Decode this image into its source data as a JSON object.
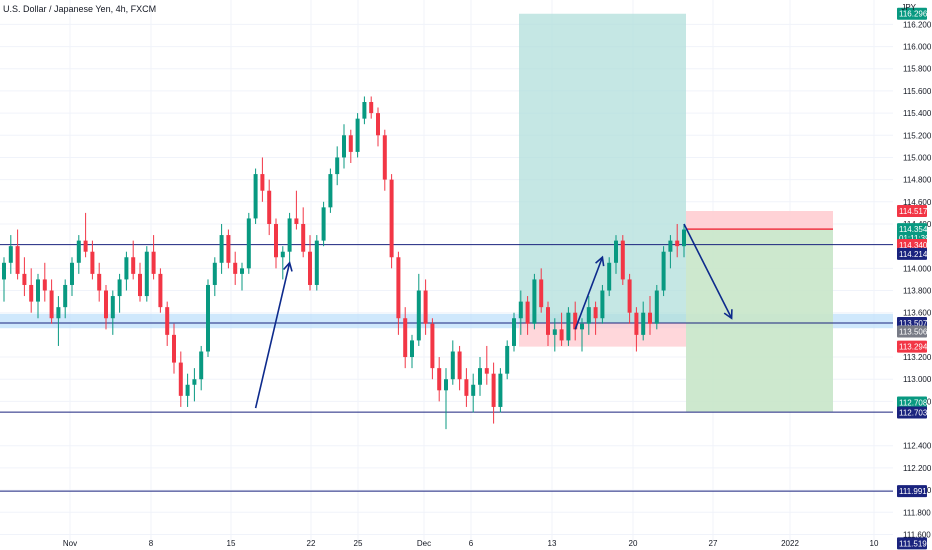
{
  "header": {
    "symbol_title": "U.S. Dollar / Japanese Yen, 4h, FXCM",
    "currency_unit": "JPY"
  },
  "chart_data": {
    "type": "candlestick",
    "title": "U.S. Dollar / Japanese Yen, 4h, FXCM",
    "ylim": [
      111.55,
      116.42
    ],
    "grid": true,
    "x_tick_labels": [
      "Nov",
      "8",
      "15",
      "22",
      "25",
      "Dec",
      "6",
      "13",
      "20",
      "27",
      "2022",
      "10"
    ],
    "y_tick_labels": [
      "116.200",
      "116.000",
      "115.800",
      "115.600",
      "115.400",
      "115.200",
      "115.000",
      "114.800",
      "114.600",
      "114.400",
      "114.000",
      "113.800",
      "113.600",
      "113.200",
      "113.000",
      "112.800",
      "112.400",
      "112.200",
      "112.000",
      "111.800",
      "111.600"
    ],
    "price_tags": [
      {
        "label": "116.296",
        "value": 116.296,
        "color": "#089981"
      },
      {
        "label": "114.517",
        "value": 114.517,
        "color": "#f23645"
      },
      {
        "label": "114.354",
        "value": 114.354,
        "color": "#089981"
      },
      {
        "label": "01:11:39",
        "value": 114.274,
        "color": "#089981"
      },
      {
        "label": "114.340",
        "value": 114.21,
        "color": "#f23645"
      },
      {
        "label": "114.214",
        "value": 114.13,
        "color": "#1a237e"
      },
      {
        "label": "113.507",
        "value": 113.507,
        "color": "#1a237e"
      },
      {
        "label": "113.506",
        "value": 113.43,
        "color": "#787b86"
      },
      {
        "label": "113.294",
        "value": 113.294,
        "color": "#f23645"
      },
      {
        "label": "112.708",
        "value": 112.79,
        "color": "#089981"
      },
      {
        "label": "112.703",
        "value": 112.7,
        "color": "#1a237e"
      },
      {
        "label": "111.991",
        "value": 111.991,
        "color": "#1a237e"
      },
      {
        "label": "111.519",
        "value": 111.519,
        "color": "#1a237e"
      }
    ],
    "horizontal_lines": [
      114.214,
      113.507,
      112.703,
      111.991
    ],
    "support_zone": [
      113.46,
      113.59
    ],
    "long_position": {
      "entry": 113.507,
      "target": 116.296,
      "stop": 113.294
    },
    "short_position": {
      "entry": 114.354,
      "target": 112.708,
      "stop": 114.517
    },
    "candles": [
      [
        113.9,
        114.1,
        113.7,
        114.05
      ],
      [
        114.05,
        114.3,
        113.95,
        114.2
      ],
      [
        114.2,
        114.35,
        113.9,
        113.95
      ],
      [
        113.95,
        114.1,
        113.75,
        113.85
      ],
      [
        113.85,
        114.0,
        113.6,
        113.7
      ],
      [
        113.7,
        113.95,
        113.55,
        113.9
      ],
      [
        113.9,
        114.05,
        113.7,
        113.8
      ],
      [
        113.8,
        113.9,
        113.5,
        113.55
      ],
      [
        113.55,
        113.75,
        113.3,
        113.65
      ],
      [
        113.65,
        113.9,
        113.55,
        113.85
      ],
      [
        113.85,
        114.1,
        113.75,
        114.05
      ],
      [
        114.05,
        114.3,
        113.95,
        114.25
      ],
      [
        114.25,
        114.5,
        114.1,
        114.15
      ],
      [
        114.15,
        114.25,
        113.9,
        113.95
      ],
      [
        113.95,
        114.05,
        113.7,
        113.8
      ],
      [
        113.8,
        113.85,
        113.45,
        113.55
      ],
      [
        113.55,
        113.8,
        113.4,
        113.75
      ],
      [
        113.75,
        113.95,
        113.6,
        113.9
      ],
      [
        113.9,
        114.15,
        113.8,
        114.1
      ],
      [
        114.1,
        114.25,
        113.9,
        113.95
      ],
      [
        113.95,
        114.05,
        113.7,
        113.75
      ],
      [
        113.75,
        114.2,
        113.7,
        114.15
      ],
      [
        114.15,
        114.3,
        113.9,
        113.95
      ],
      [
        113.95,
        114.0,
        113.6,
        113.65
      ],
      [
        113.65,
        113.7,
        113.3,
        113.4
      ],
      [
        113.4,
        113.5,
        113.05,
        113.15
      ],
      [
        113.15,
        113.25,
        112.75,
        112.85
      ],
      [
        112.85,
        113.05,
        112.75,
        112.95
      ],
      [
        112.95,
        113.1,
        112.8,
        113.0
      ],
      [
        113.0,
        113.3,
        112.9,
        113.25
      ],
      [
        113.25,
        113.9,
        113.2,
        113.85
      ],
      [
        113.85,
        114.1,
        113.75,
        114.05
      ],
      [
        114.05,
        114.4,
        113.95,
        114.3
      ],
      [
        114.3,
        114.35,
        114.0,
        114.05
      ],
      [
        114.05,
        114.15,
        113.85,
        113.95
      ],
      [
        113.95,
        114.05,
        113.8,
        114.0
      ],
      [
        114.0,
        114.5,
        113.95,
        114.45
      ],
      [
        114.45,
        114.9,
        114.4,
        114.85
      ],
      [
        114.85,
        115.0,
        114.6,
        114.7
      ],
      [
        114.7,
        114.8,
        114.3,
        114.4
      ],
      [
        114.4,
        114.45,
        114.0,
        114.1
      ],
      [
        114.1,
        114.2,
        113.9,
        114.15
      ],
      [
        114.15,
        114.5,
        114.05,
        114.45
      ],
      [
        114.45,
        114.7,
        114.35,
        114.4
      ],
      [
        114.4,
        114.55,
        114.1,
        114.15
      ],
      [
        114.15,
        114.3,
        113.8,
        113.85
      ],
      [
        113.85,
        114.3,
        113.8,
        114.25
      ],
      [
        114.25,
        114.6,
        114.2,
        114.55
      ],
      [
        114.55,
        114.9,
        114.5,
        114.85
      ],
      [
        114.85,
        115.1,
        114.75,
        115.0
      ],
      [
        115.0,
        115.3,
        114.9,
        115.2
      ],
      [
        115.2,
        115.25,
        114.95,
        115.05
      ],
      [
        115.05,
        115.4,
        115.0,
        115.35
      ],
      [
        115.35,
        115.55,
        115.3,
        115.5
      ],
      [
        115.5,
        115.55,
        115.35,
        115.4
      ],
      [
        115.4,
        115.45,
        115.1,
        115.2
      ],
      [
        115.2,
        115.25,
        114.7,
        114.8
      ],
      [
        114.8,
        114.85,
        114.0,
        114.1
      ],
      [
        114.1,
        114.15,
        113.4,
        113.55
      ],
      [
        113.55,
        113.65,
        113.1,
        113.2
      ],
      [
        113.2,
        113.4,
        113.1,
        113.35
      ],
      [
        113.35,
        113.95,
        113.3,
        113.8
      ],
      [
        113.8,
        113.9,
        113.4,
        113.5
      ],
      [
        113.5,
        113.55,
        113.0,
        113.1
      ],
      [
        113.1,
        113.2,
        112.8,
        112.9
      ],
      [
        112.9,
        113.1,
        112.55,
        113.0
      ],
      [
        113.0,
        113.35,
        112.95,
        113.25
      ],
      [
        113.25,
        113.3,
        112.9,
        113.0
      ],
      [
        113.0,
        113.1,
        112.75,
        112.85
      ],
      [
        112.85,
        113.05,
        112.7,
        112.95
      ],
      [
        112.95,
        113.2,
        112.85,
        113.1
      ],
      [
        113.1,
        113.3,
        112.95,
        113.05
      ],
      [
        113.05,
        113.15,
        112.6,
        112.75
      ],
      [
        112.75,
        113.1,
        112.7,
        113.05
      ],
      [
        113.05,
        113.35,
        113.0,
        113.3
      ],
      [
        113.3,
        113.6,
        113.25,
        113.55
      ],
      [
        113.55,
        113.8,
        113.4,
        113.7
      ],
      [
        113.7,
        113.75,
        113.4,
        113.5
      ],
      [
        113.5,
        113.95,
        113.45,
        113.9
      ],
      [
        113.9,
        114.0,
        113.6,
        113.65
      ],
      [
        113.65,
        113.7,
        113.3,
        113.4
      ],
      [
        113.4,
        113.55,
        113.25,
        113.45
      ],
      [
        113.45,
        113.6,
        113.3,
        113.35
      ],
      [
        113.35,
        113.65,
        113.3,
        113.6
      ],
      [
        113.6,
        113.7,
        113.35,
        113.45
      ],
      [
        113.45,
        113.55,
        113.25,
        113.5
      ],
      [
        113.5,
        113.75,
        113.4,
        113.65
      ],
      [
        113.65,
        113.7,
        113.4,
        113.55
      ],
      [
        113.55,
        113.85,
        113.5,
        113.8
      ],
      [
        113.8,
        114.1,
        113.75,
        114.05
      ],
      [
        114.05,
        114.3,
        113.95,
        114.25
      ],
      [
        114.25,
        114.3,
        113.85,
        113.9
      ],
      [
        113.9,
        113.95,
        113.5,
        113.6
      ],
      [
        113.6,
        113.65,
        113.25,
        113.4
      ],
      [
        113.4,
        113.7,
        113.35,
        113.6
      ],
      [
        113.6,
        113.75,
        113.4,
        113.5
      ],
      [
        113.5,
        113.85,
        113.45,
        113.8
      ],
      [
        113.8,
        114.2,
        113.75,
        114.15
      ],
      [
        114.15,
        114.3,
        114.0,
        114.25
      ],
      [
        114.25,
        114.4,
        114.1,
        114.2
      ],
      [
        114.2,
        114.4,
        114.1,
        114.35
      ]
    ],
    "drawings": [
      {
        "type": "arrow",
        "from": [
          37,
          112.74
        ],
        "to": [
          42,
          114.05
        ]
      },
      {
        "type": "arrow",
        "from": [
          84,
          113.45
        ],
        "to": [
          88,
          114.1
        ]
      },
      {
        "type": "arrow",
        "from": [
          100,
          114.4
        ],
        "to": [
          107,
          113.55
        ]
      }
    ]
  },
  "colors": {
    "up": "#089981",
    "down": "#f23645",
    "level_line": "#1a237e",
    "grid": "#f0f3fa",
    "profit_zone_long": "#b2dfdb",
    "loss_zone": "#ffcdd2",
    "profit_zone_short": "#c8e6c9",
    "support_zone": "#bbdefb",
    "arrow": "#0d2a8c"
  }
}
